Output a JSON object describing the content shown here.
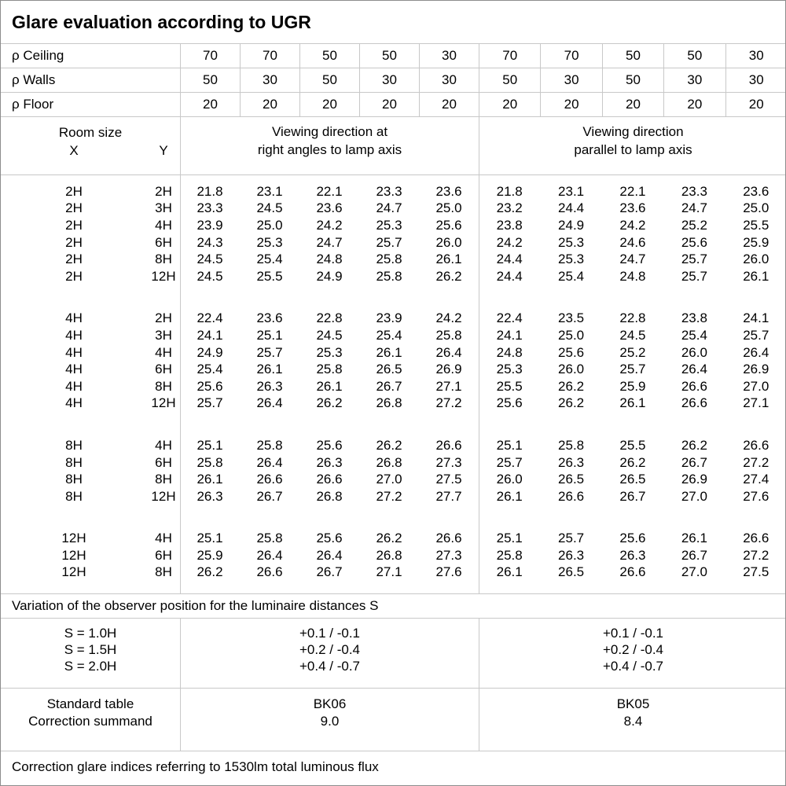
{
  "title": "Glare evaluation according to UGR",
  "reflectance": {
    "rows": [
      {
        "label": "ρ Ceiling",
        "values": [
          "70",
          "70",
          "50",
          "50",
          "30",
          "70",
          "70",
          "50",
          "50",
          "30"
        ]
      },
      {
        "label": "ρ Walls",
        "values": [
          "50",
          "30",
          "50",
          "30",
          "30",
          "50",
          "30",
          "50",
          "30",
          "30"
        ]
      },
      {
        "label": "ρ Floor",
        "values": [
          "20",
          "20",
          "20",
          "20",
          "20",
          "20",
          "20",
          "20",
          "20",
          "20"
        ]
      }
    ]
  },
  "header": {
    "room_size_label": "Room size",
    "x_label": "X",
    "y_label": "Y",
    "right_angles_line1": "Viewing direction at",
    "right_angles_line2": "right angles to lamp axis",
    "parallel_line1": "Viewing direction",
    "parallel_line2": "parallel to lamp axis"
  },
  "ugr_table": {
    "blocks": [
      {
        "rows": [
          {
            "x": "2H",
            "y": "2H",
            "right_angles": [
              "21.8",
              "23.1",
              "22.1",
              "23.3",
              "23.6"
            ],
            "parallel": [
              "21.8",
              "23.1",
              "22.1",
              "23.3",
              "23.6"
            ]
          },
          {
            "x": "2H",
            "y": "3H",
            "right_angles": [
              "23.3",
              "24.5",
              "23.6",
              "24.7",
              "25.0"
            ],
            "parallel": [
              "23.2",
              "24.4",
              "23.6",
              "24.7",
              "25.0"
            ]
          },
          {
            "x": "2H",
            "y": "4H",
            "right_angles": [
              "23.9",
              "25.0",
              "24.2",
              "25.3",
              "25.6"
            ],
            "parallel": [
              "23.8",
              "24.9",
              "24.2",
              "25.2",
              "25.5"
            ]
          },
          {
            "x": "2H",
            "y": "6H",
            "right_angles": [
              "24.3",
              "25.3",
              "24.7",
              "25.7",
              "26.0"
            ],
            "parallel": [
              "24.2",
              "25.3",
              "24.6",
              "25.6",
              "25.9"
            ]
          },
          {
            "x": "2H",
            "y": "8H",
            "right_angles": [
              "24.5",
              "25.4",
              "24.8",
              "25.8",
              "26.1"
            ],
            "parallel": [
              "24.4",
              "25.3",
              "24.7",
              "25.7",
              "26.0"
            ]
          },
          {
            "x": "2H",
            "y": "12H",
            "right_angles": [
              "24.5",
              "25.5",
              "24.9",
              "25.8",
              "26.2"
            ],
            "parallel": [
              "24.4",
              "25.4",
              "24.8",
              "25.7",
              "26.1"
            ]
          }
        ]
      },
      {
        "rows": [
          {
            "x": "4H",
            "y": "2H",
            "right_angles": [
              "22.4",
              "23.6",
              "22.8",
              "23.9",
              "24.2"
            ],
            "parallel": [
              "22.4",
              "23.5",
              "22.8",
              "23.8",
              "24.1"
            ]
          },
          {
            "x": "4H",
            "y": "3H",
            "right_angles": [
              "24.1",
              "25.1",
              "24.5",
              "25.4",
              "25.8"
            ],
            "parallel": [
              "24.1",
              "25.0",
              "24.5",
              "25.4",
              "25.7"
            ]
          },
          {
            "x": "4H",
            "y": "4H",
            "right_angles": [
              "24.9",
              "25.7",
              "25.3",
              "26.1",
              "26.4"
            ],
            "parallel": [
              "24.8",
              "25.6",
              "25.2",
              "26.0",
              "26.4"
            ]
          },
          {
            "x": "4H",
            "y": "6H",
            "right_angles": [
              "25.4",
              "26.1",
              "25.8",
              "26.5",
              "26.9"
            ],
            "parallel": [
              "25.3",
              "26.0",
              "25.7",
              "26.4",
              "26.9"
            ]
          },
          {
            "x": "4H",
            "y": "8H",
            "right_angles": [
              "25.6",
              "26.3",
              "26.1",
              "26.7",
              "27.1"
            ],
            "parallel": [
              "25.5",
              "26.2",
              "25.9",
              "26.6",
              "27.0"
            ]
          },
          {
            "x": "4H",
            "y": "12H",
            "right_angles": [
              "25.7",
              "26.4",
              "26.2",
              "26.8",
              "27.2"
            ],
            "parallel": [
              "25.6",
              "26.2",
              "26.1",
              "26.6",
              "27.1"
            ]
          }
        ]
      },
      {
        "rows": [
          {
            "x": "8H",
            "y": "4H",
            "right_angles": [
              "25.1",
              "25.8",
              "25.6",
              "26.2",
              "26.6"
            ],
            "parallel": [
              "25.1",
              "25.8",
              "25.5",
              "26.2",
              "26.6"
            ]
          },
          {
            "x": "8H",
            "y": "6H",
            "right_angles": [
              "25.8",
              "26.4",
              "26.3",
              "26.8",
              "27.3"
            ],
            "parallel": [
              "25.7",
              "26.3",
              "26.2",
              "26.7",
              "27.2"
            ]
          },
          {
            "x": "8H",
            "y": "8H",
            "right_angles": [
              "26.1",
              "26.6",
              "26.6",
              "27.0",
              "27.5"
            ],
            "parallel": [
              "26.0",
              "26.5",
              "26.5",
              "26.9",
              "27.4"
            ]
          },
          {
            "x": "8H",
            "y": "12H",
            "right_angles": [
              "26.3",
              "26.7",
              "26.8",
              "27.2",
              "27.7"
            ],
            "parallel": [
              "26.1",
              "26.6",
              "26.7",
              "27.0",
              "27.6"
            ]
          }
        ]
      },
      {
        "rows": [
          {
            "x": "12H",
            "y": "4H",
            "right_angles": [
              "25.1",
              "25.8",
              "25.6",
              "26.2",
              "26.6"
            ],
            "parallel": [
              "25.1",
              "25.7",
              "25.6",
              "26.1",
              "26.6"
            ]
          },
          {
            "x": "12H",
            "y": "6H",
            "right_angles": [
              "25.9",
              "26.4",
              "26.4",
              "26.8",
              "27.3"
            ],
            "parallel": [
              "25.8",
              "26.3",
              "26.3",
              "26.7",
              "27.2"
            ]
          },
          {
            "x": "12H",
            "y": "8H",
            "right_angles": [
              "26.2",
              "26.6",
              "26.7",
              "27.1",
              "27.6"
            ],
            "parallel": [
              "26.1",
              "26.5",
              "26.6",
              "27.0",
              "27.5"
            ]
          }
        ]
      }
    ]
  },
  "variation": {
    "caption": "Variation of the observer position for the luminaire distances S",
    "rows": [
      {
        "label": "S = 1.0H",
        "right_angles": "+0.1 / -0.1",
        "parallel": "+0.1 / -0.1"
      },
      {
        "label": "S = 1.5H",
        "right_angles": "+0.2 / -0.4",
        "parallel": "+0.2 / -0.4"
      },
      {
        "label": "S = 2.0H",
        "right_angles": "+0.4 / -0.7",
        "parallel": "+0.4 / -0.7"
      }
    ]
  },
  "summary": {
    "row1_label": "Standard table",
    "row2_label": "Correction summand",
    "right_angles_table": "BK06",
    "right_angles_summand": "9.0",
    "parallel_table": "BK05",
    "parallel_summand": "8.4"
  },
  "footer_note": "Correction glare indices referring to 1530lm total luminous flux",
  "colors": {
    "background": "#ffffff",
    "text": "#000000",
    "grid_line": "#c8c8c8",
    "outer_border": "#8c8c8c"
  }
}
